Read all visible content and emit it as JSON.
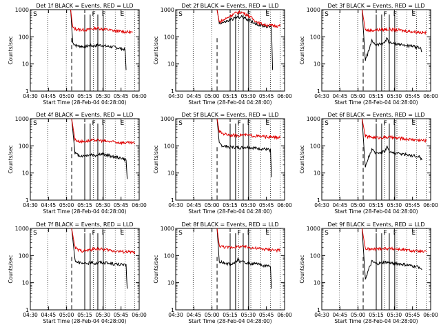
{
  "ylabel": "Counts/sec",
  "xlabel": "Start Time (28-Feb-04 04:28:00)",
  "flags": [
    "S",
    "F",
    "F",
    "E"
  ],
  "colors": {
    "events": "#000000",
    "lld": "#e00000"
  },
  "chart_data": [
    {
      "type": "line",
      "title": "Det 1f BLACK = Events, RED = LLD",
      "xlabel": "Start Time (28-Feb-04 04:28:00)",
      "ylabel": "Counts/sec",
      "x_ticks": [
        "04:30",
        "04:45",
        "05:00",
        "05:15",
        "05:30",
        "05:45",
        "06:00"
      ],
      "y_ticks": [
        "1",
        "10",
        "100",
        "1000"
      ],
      "y_scale": "log",
      "xlim": [
        0,
        100
      ],
      "ylim": [
        1,
        1000
      ],
      "series": [
        {
          "color": "black",
          "x": [
            37,
            39,
            42,
            46,
            50,
            54,
            58,
            62,
            66,
            70,
            74,
            78,
            82,
            86,
            87,
            88
          ],
          "y": [
            1000,
            60,
            48,
            45,
            44,
            47,
            46,
            50,
            48,
            45,
            43,
            41,
            38,
            35,
            33,
            6
          ]
        },
        {
          "color": "red",
          "x": [
            37,
            39,
            42,
            46,
            50,
            54,
            58,
            62,
            66,
            70,
            74,
            78,
            82,
            86,
            90,
            94
          ],
          "y": [
            1000,
            220,
            190,
            185,
            180,
            185,
            200,
            210,
            195,
            185,
            175,
            165,
            160,
            155,
            150,
            145
          ]
        }
      ]
    },
    {
      "type": "line",
      "title": "Det 2f BLACK = Events, RED = LLD",
      "xlabel": "Start Time (28-Feb-04 04:28:00)",
      "ylabel": "Counts/sec",
      "x_ticks": [
        "04:30",
        "04:45",
        "05:00",
        "05:15",
        "05:30",
        "05:45",
        "06:00"
      ],
      "y_ticks": [
        "1",
        "10",
        "100",
        "1000"
      ],
      "y_scale": "log",
      "xlim": [
        0,
        100
      ],
      "ylim": [
        1,
        1000
      ],
      "series": [
        {
          "color": "black",
          "x": [
            38,
            40,
            44,
            48,
            52,
            56,
            60,
            64,
            68,
            72,
            76,
            80,
            84,
            88,
            89
          ],
          "y": [
            1000,
            320,
            340,
            380,
            450,
            520,
            550,
            480,
            400,
            330,
            280,
            260,
            240,
            230,
            6
          ]
        },
        {
          "color": "red",
          "x": [
            38,
            40,
            44,
            48,
            52,
            56,
            60,
            64,
            68,
            72,
            76,
            80,
            84,
            88,
            92,
            96
          ],
          "y": [
            1000,
            350,
            420,
            520,
            650,
            780,
            820,
            700,
            560,
            420,
            330,
            290,
            270,
            260,
            255,
            250
          ]
        }
      ]
    },
    {
      "type": "line",
      "title": "Det 3f BLACK = Events, RED = LLD",
      "xlabel": "Start Time (28-Feb-04 04:28:00)",
      "ylabel": "Counts/sec",
      "x_ticks": [
        "04:30",
        "04:45",
        "05:00",
        "05:15",
        "05:30",
        "05:45",
        "06:00"
      ],
      "y_ticks": [
        "1",
        "10",
        "100",
        "1000"
      ],
      "y_scale": "log",
      "xlim": [
        0,
        100
      ],
      "ylim": [
        1,
        1000
      ],
      "series": [
        {
          "color": "black",
          "x": [
            37,
            40,
            43,
            46,
            50,
            54,
            58,
            60,
            62,
            66,
            70,
            74,
            78,
            82,
            86,
            90,
            92
          ],
          "y": [
            1000,
            14,
            30,
            70,
            50,
            55,
            65,
            90,
            60,
            55,
            55,
            50,
            48,
            45,
            42,
            40,
            30
          ]
        },
        {
          "color": "red",
          "x": [
            37,
            40,
            44,
            48,
            52,
            56,
            60,
            64,
            68,
            72,
            76,
            80,
            84,
            88,
            92,
            96
          ],
          "y": [
            1000,
            180,
            170,
            175,
            180,
            185,
            190,
            185,
            180,
            175,
            165,
            160,
            155,
            150,
            145,
            140
          ]
        }
      ]
    },
    {
      "type": "line",
      "title": "Det 4f BLACK = Events, RED = LLD",
      "xlabel": "Start Time (28-Feb-04 04:28:00)",
      "ylabel": "Counts/sec",
      "x_ticks": [
        "04:30",
        "04:45",
        "05:00",
        "05:15",
        "05:30",
        "05:45",
        "06:00"
      ],
      "y_ticks": [
        "1",
        "10",
        "100",
        "1000"
      ],
      "y_scale": "log",
      "xlim": [
        0,
        100
      ],
      "ylim": [
        1,
        1000
      ],
      "series": [
        {
          "color": "black",
          "x": [
            38,
            41,
            44,
            48,
            52,
            56,
            60,
            64,
            68,
            72,
            76,
            80,
            84,
            88,
            89
          ],
          "y": [
            1000,
            55,
            45,
            42,
            45,
            48,
            44,
            50,
            48,
            44,
            40,
            38,
            35,
            30,
            6
          ]
        },
        {
          "color": "red",
          "x": [
            38,
            41,
            44,
            48,
            52,
            56,
            60,
            64,
            68,
            72,
            76,
            80,
            84,
            88,
            92,
            96
          ],
          "y": [
            1000,
            170,
            150,
            145,
            150,
            155,
            165,
            160,
            150,
            145,
            140,
            135,
            132,
            130,
            128,
            125
          ]
        }
      ]
    },
    {
      "type": "line",
      "title": "Det 5f BLACK = Events, RED = LLD",
      "xlabel": "Start Time (28-Feb-04 04:28:00)",
      "ylabel": "Counts/sec",
      "x_ticks": [
        "04:30",
        "04:45",
        "05:00",
        "05:15",
        "05:30",
        "05:45",
        "06:00"
      ],
      "y_ticks": [
        "1",
        "10",
        "100",
        "1000"
      ],
      "y_scale": "log",
      "xlim": [
        0,
        100
      ],
      "ylim": [
        1,
        1000
      ],
      "series": [
        {
          "color": "black",
          "x": [
            38,
            40,
            43,
            47,
            51,
            55,
            59,
            63,
            67,
            71,
            75,
            79,
            83,
            87,
            88
          ],
          "y": [
            1000,
            120,
            100,
            95,
            90,
            88,
            85,
            90,
            88,
            85,
            80,
            78,
            75,
            70,
            7
          ]
        },
        {
          "color": "red",
          "x": [
            38,
            40,
            44,
            48,
            52,
            56,
            60,
            64,
            68,
            72,
            76,
            80,
            84,
            88,
            92,
            96
          ],
          "y": [
            1000,
            330,
            280,
            260,
            250,
            245,
            255,
            250,
            240,
            235,
            225,
            220,
            215,
            210,
            205,
            200
          ]
        }
      ]
    },
    {
      "type": "line",
      "title": "Det 6f BLACK = Events, RED = LLD",
      "xlabel": "Start Time (28-Feb-04 04:28:00)",
      "ylabel": "Counts/sec",
      "x_ticks": [
        "04:30",
        "04:45",
        "05:00",
        "05:15",
        "05:30",
        "05:45",
        "06:00"
      ],
      "y_ticks": [
        "1",
        "10",
        "100",
        "1000"
      ],
      "y_scale": "log",
      "xlim": [
        0,
        100
      ],
      "ylim": [
        1,
        1000
      ],
      "series": [
        {
          "color": "black",
          "x": [
            37,
            40,
            43,
            46,
            50,
            54,
            58,
            60,
            62,
            66,
            70,
            74,
            78,
            82,
            86,
            90,
            92
          ],
          "y": [
            1000,
            15,
            40,
            70,
            55,
            58,
            65,
            95,
            60,
            55,
            52,
            50,
            48,
            45,
            42,
            40,
            30
          ]
        },
        {
          "color": "red",
          "x": [
            37,
            40,
            44,
            48,
            52,
            56,
            60,
            64,
            68,
            72,
            76,
            80,
            84,
            88,
            92,
            96
          ],
          "y": [
            1000,
            230,
            210,
            205,
            200,
            205,
            210,
            205,
            195,
            190,
            180,
            175,
            170,
            165,
            160,
            155
          ]
        }
      ]
    },
    {
      "type": "line",
      "title": "Det 7f BLACK = Events, RED = LLD",
      "xlabel": "Start Time (28-Feb-04 04:28:00)",
      "ylabel": "Counts/sec",
      "x_ticks": [
        "04:30",
        "04:45",
        "05:00",
        "05:15",
        "05:30",
        "05:45",
        "06:00"
      ],
      "y_ticks": [
        "1",
        "10",
        "100",
        "1000"
      ],
      "y_scale": "log",
      "xlim": [
        0,
        100
      ],
      "ylim": [
        1,
        1000
      ],
      "series": [
        {
          "color": "black",
          "x": [
            38,
            41,
            44,
            48,
            52,
            56,
            60,
            64,
            68,
            72,
            76,
            80,
            84,
            88,
            89
          ],
          "y": [
            1000,
            70,
            55,
            50,
            52,
            55,
            52,
            58,
            55,
            52,
            50,
            48,
            46,
            44,
            6
          ]
        },
        {
          "color": "red",
          "x": [
            38,
            41,
            44,
            48,
            52,
            56,
            60,
            64,
            68,
            72,
            76,
            80,
            84,
            88,
            92,
            96
          ],
          "y": [
            1000,
            200,
            160,
            150,
            155,
            165,
            180,
            175,
            165,
            160,
            150,
            145,
            140,
            138,
            135,
            132
          ]
        }
      ]
    },
    {
      "type": "line",
      "title": "Det 8f BLACK = Events, RED = LLD",
      "xlabel": "Start Time (28-Feb-04 04:28:00)",
      "ylabel": "Counts/sec",
      "x_ticks": [
        "04:30",
        "04:45",
        "05:00",
        "05:15",
        "05:30",
        "05:45",
        "06:00"
      ],
      "y_ticks": [
        "1",
        "10",
        "100",
        "1000"
      ],
      "y_scale": "log",
      "xlim": [
        0,
        100
      ],
      "ylim": [
        1,
        1000
      ],
      "series": [
        {
          "color": "black",
          "x": [
            38,
            40,
            43,
            47,
            51,
            55,
            57,
            59,
            63,
            67,
            71,
            75,
            79,
            83,
            87,
            88
          ],
          "y": [
            1000,
            60,
            55,
            52,
            50,
            55,
            75,
            60,
            55,
            52,
            50,
            48,
            45,
            42,
            40,
            6
          ]
        },
        {
          "color": "red",
          "x": [
            38,
            40,
            44,
            48,
            52,
            56,
            60,
            64,
            68,
            72,
            76,
            80,
            84,
            88,
            92,
            96
          ],
          "y": [
            1000,
            230,
            210,
            200,
            205,
            210,
            215,
            210,
            200,
            190,
            180,
            175,
            170,
            165,
            160,
            155
          ]
        }
      ]
    },
    {
      "type": "line",
      "title": "Det 9f BLACK = Events, RED = LLD",
      "xlabel": "Start Time (28-Feb-04 04:28:00)",
      "ylabel": "Counts/sec",
      "x_ticks": [
        "04:30",
        "04:45",
        "05:00",
        "05:15",
        "05:30",
        "05:45",
        "06:00"
      ],
      "y_ticks": [
        "1",
        "10",
        "100",
        "1000"
      ],
      "y_scale": "log",
      "xlim": [
        0,
        100
      ],
      "ylim": [
        1,
        1000
      ],
      "series": [
        {
          "color": "black",
          "x": [
            37,
            40,
            43,
            46,
            50,
            54,
            58,
            62,
            66,
            70,
            74,
            78,
            82,
            86,
            90,
            92
          ],
          "y": [
            1000,
            14,
            30,
            60,
            50,
            52,
            58,
            55,
            52,
            50,
            48,
            45,
            42,
            40,
            38,
            30
          ]
        },
        {
          "color": "red",
          "x": [
            37,
            40,
            44,
            48,
            52,
            56,
            60,
            64,
            68,
            72,
            76,
            80,
            84,
            88,
            92,
            96
          ],
          "y": [
            1000,
            180,
            170,
            172,
            178,
            182,
            185,
            180,
            175,
            170,
            160,
            155,
            150,
            145,
            140,
            135
          ]
        }
      ]
    }
  ]
}
